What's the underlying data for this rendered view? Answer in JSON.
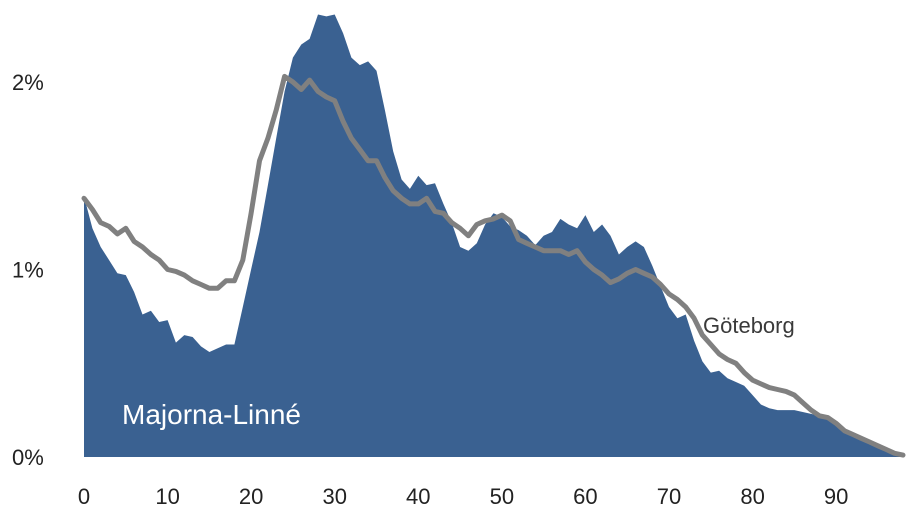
{
  "chart_data": {
    "type": "area",
    "xlim": [
      0,
      98
    ],
    "ylim": [
      0,
      2.3
    ],
    "grid": false,
    "x_ticks": [
      0,
      10,
      20,
      30,
      40,
      50,
      60,
      70,
      80,
      90
    ],
    "y_ticks": [
      {
        "value": 0,
        "label": "0%"
      },
      {
        "value": 1,
        "label": "1%"
      },
      {
        "value": 2,
        "label": "2%"
      }
    ],
    "series": [
      {
        "name": "Majorna-Linné",
        "kind": "area",
        "color": "#3a6191",
        "x": [
          0,
          1,
          2,
          3,
          4,
          5,
          6,
          7,
          8,
          9,
          10,
          11,
          12,
          13,
          14,
          15,
          16,
          17,
          18,
          19,
          20,
          21,
          22,
          23,
          24,
          25,
          26,
          27,
          28,
          29,
          30,
          31,
          32,
          33,
          34,
          35,
          36,
          37,
          38,
          39,
          40,
          41,
          42,
          43,
          44,
          45,
          46,
          47,
          48,
          49,
          50,
          51,
          52,
          53,
          54,
          55,
          56,
          57,
          58,
          59,
          60,
          61,
          62,
          63,
          64,
          65,
          66,
          67,
          68,
          69,
          70,
          71,
          72,
          73,
          74,
          75,
          76,
          77,
          78,
          79,
          80,
          81,
          82,
          83,
          84,
          85,
          86,
          87,
          88,
          89,
          90,
          91,
          92,
          93,
          94,
          95,
          96,
          97,
          98
        ],
        "values": [
          1.39,
          1.22,
          1.12,
          1.05,
          0.98,
          0.97,
          0.88,
          0.76,
          0.78,
          0.72,
          0.73,
          0.61,
          0.65,
          0.64,
          0.59,
          0.56,
          0.58,
          0.6,
          0.6,
          0.8,
          1.0,
          1.2,
          1.45,
          1.7,
          1.95,
          2.13,
          2.2,
          2.23,
          2.36,
          2.35,
          2.36,
          2.26,
          2.13,
          2.09,
          2.11,
          2.06,
          1.85,
          1.63,
          1.48,
          1.43,
          1.5,
          1.45,
          1.46,
          1.35,
          1.25,
          1.12,
          1.1,
          1.14,
          1.24,
          1.3,
          1.28,
          1.23,
          1.21,
          1.18,
          1.13,
          1.18,
          1.2,
          1.27,
          1.24,
          1.22,
          1.29,
          1.2,
          1.24,
          1.18,
          1.08,
          1.12,
          1.15,
          1.12,
          1.02,
          0.91,
          0.8,
          0.74,
          0.76,
          0.62,
          0.51,
          0.45,
          0.46,
          0.42,
          0.4,
          0.38,
          0.33,
          0.28,
          0.26,
          0.25,
          0.25,
          0.25,
          0.24,
          0.23,
          0.22,
          0.2,
          0.19,
          0.15,
          0.13,
          0.11,
          0.09,
          0.07,
          0.05,
          0.03,
          0.02
        ]
      },
      {
        "name": "Göteborg",
        "kind": "line",
        "color": "#808080",
        "x": [
          0,
          1,
          2,
          3,
          4,
          5,
          6,
          7,
          8,
          9,
          10,
          11,
          12,
          13,
          14,
          15,
          16,
          17,
          18,
          19,
          20,
          21,
          22,
          23,
          24,
          25,
          26,
          27,
          28,
          29,
          30,
          31,
          32,
          33,
          34,
          35,
          36,
          37,
          38,
          39,
          40,
          41,
          42,
          43,
          44,
          45,
          46,
          47,
          48,
          49,
          50,
          51,
          52,
          53,
          54,
          55,
          56,
          57,
          58,
          59,
          60,
          61,
          62,
          63,
          64,
          65,
          66,
          67,
          68,
          69,
          70,
          71,
          72,
          73,
          74,
          75,
          76,
          77,
          78,
          79,
          80,
          81,
          82,
          83,
          84,
          85,
          86,
          87,
          88,
          89,
          90,
          91,
          92,
          93,
          94,
          95,
          96,
          97,
          98
        ],
        "values": [
          1.38,
          1.32,
          1.25,
          1.23,
          1.19,
          1.22,
          1.15,
          1.12,
          1.08,
          1.05,
          1.0,
          0.99,
          0.97,
          0.94,
          0.92,
          0.9,
          0.9,
          0.94,
          0.94,
          1.05,
          1.3,
          1.58,
          1.7,
          1.85,
          2.03,
          2.0,
          1.96,
          2.01,
          1.95,
          1.92,
          1.9,
          1.79,
          1.7,
          1.64,
          1.58,
          1.58,
          1.49,
          1.42,
          1.38,
          1.35,
          1.35,
          1.38,
          1.31,
          1.3,
          1.25,
          1.22,
          1.18,
          1.24,
          1.26,
          1.27,
          1.29,
          1.26,
          1.16,
          1.14,
          1.12,
          1.1,
          1.1,
          1.1,
          1.08,
          1.1,
          1.04,
          1.0,
          0.97,
          0.93,
          0.95,
          0.98,
          1.0,
          0.98,
          0.96,
          0.92,
          0.87,
          0.84,
          0.8,
          0.74,
          0.65,
          0.6,
          0.55,
          0.52,
          0.5,
          0.45,
          0.41,
          0.39,
          0.37,
          0.36,
          0.35,
          0.33,
          0.29,
          0.25,
          0.22,
          0.21,
          0.18,
          0.14,
          0.12,
          0.1,
          0.08,
          0.06,
          0.04,
          0.02,
          0.01
        ]
      }
    ]
  }
}
